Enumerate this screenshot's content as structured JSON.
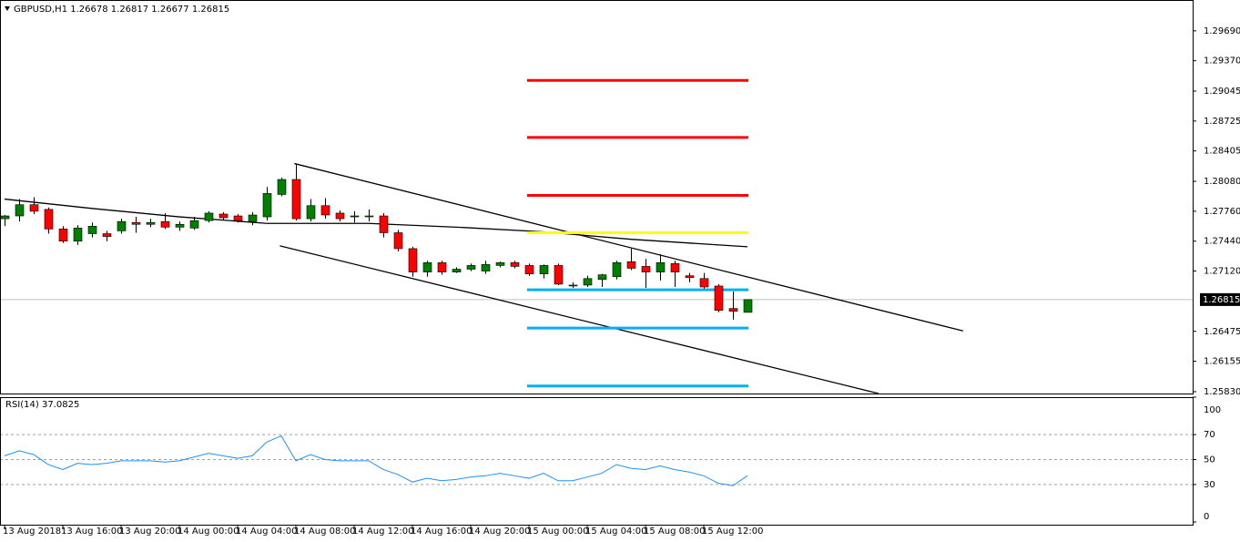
{
  "chart_data": [
    {
      "type": "candlestick",
      "title": "GBPUSD,H1  1.26678 1.26817 1.26677 1.26815",
      "categories": [
        "13 Aug 2018",
        null,
        null,
        null,
        "13 Aug 16:00",
        null,
        null,
        null,
        "13 Aug 20:00",
        null,
        null,
        null,
        "14 Aug 00:00",
        null,
        null,
        null,
        "14 Aug 04:00",
        null,
        null,
        null,
        "14 Aug 08:00",
        null,
        null,
        null,
        "14 Aug 12:00",
        null,
        null,
        null,
        "14 Aug 16:00",
        null,
        null,
        null,
        "14 Aug 20:00",
        null,
        null,
        null,
        "15 Aug 00:00",
        null,
        null,
        null,
        "15 Aug 04:00",
        null,
        null,
        null,
        "15 Aug 08:00",
        null,
        null,
        null,
        "15 Aug 12:00",
        null,
        null,
        null
      ],
      "open": [
        1.2768,
        1.2771,
        1.2783,
        1.2778,
        1.2757,
        1.2744,
        1.2752,
        1.2752,
        1.2755,
        1.2764,
        1.2762,
        1.2765,
        1.2759,
        1.2758,
        1.2766,
        1.2773,
        1.2771,
        1.2765,
        1.277,
        1.2794,
        1.281,
        1.2768,
        1.2782,
        1.2774,
        1.2771,
        1.2771,
        1.2771,
        1.2753,
        1.2736,
        1.2711,
        1.2721,
        1.2711,
        1.2714,
        1.2712,
        1.2718,
        1.2721,
        1.2718,
        1.2709,
        1.2718,
        1.2697,
        1.2697,
        1.2703,
        1.2706,
        1.2722,
        1.2717,
        1.2711,
        1.272,
        1.2707,
        1.2704,
        1.2696,
        1.2672,
        1.26678
      ],
      "high": [
        1.2772,
        1.2789,
        1.2791,
        1.278,
        1.276,
        1.2761,
        1.2764,
        1.2755,
        1.2768,
        1.277,
        1.2768,
        1.2774,
        1.2765,
        1.277,
        1.2776,
        1.2775,
        1.2773,
        1.2775,
        1.2802,
        1.2812,
        1.2827,
        1.2789,
        1.279,
        1.2777,
        1.2776,
        1.2778,
        1.2774,
        1.2756,
        1.2738,
        1.2723,
        1.2723,
        1.2716,
        1.272,
        1.2723,
        1.2722,
        1.2723,
        1.272,
        1.2719,
        1.272,
        1.27,
        1.2707,
        1.2709,
        1.2723,
        1.2736,
        1.2725,
        1.273,
        1.2723,
        1.271,
        1.271,
        1.2698,
        1.269,
        1.26817
      ],
      "low": [
        1.276,
        1.2765,
        1.2773,
        1.2752,
        1.2742,
        1.274,
        1.2748,
        1.2744,
        1.2752,
        1.2753,
        1.2759,
        1.2757,
        1.2755,
        1.2756,
        1.2764,
        1.2767,
        1.2764,
        1.2761,
        1.2766,
        1.2792,
        1.2766,
        1.2765,
        1.2768,
        1.2765,
        1.2764,
        1.2765,
        1.2748,
        1.2733,
        1.2706,
        1.2706,
        1.2708,
        1.271,
        1.2712,
        1.2709,
        1.2716,
        1.2715,
        1.2707,
        1.2704,
        1.2697,
        1.2694,
        1.2695,
        1.2695,
        1.2703,
        1.2713,
        1.2694,
        1.2702,
        1.2695,
        1.27,
        1.2693,
        1.2668,
        1.266,
        1.26677
      ],
      "close": [
        1.2771,
        1.2783,
        1.2776,
        1.2757,
        1.2744,
        1.2758,
        1.276,
        1.2749,
        1.2765,
        1.2762,
        1.2764,
        1.2759,
        1.2762,
        1.2766,
        1.2774,
        1.2769,
        1.2766,
        1.2772,
        1.2795,
        1.281,
        1.2768,
        1.2782,
        1.2772,
        1.2768,
        1.2771,
        1.2771,
        1.2753,
        1.2736,
        1.2711,
        1.2721,
        1.2711,
        1.2714,
        1.2718,
        1.2719,
        1.2721,
        1.2717,
        1.2709,
        1.2718,
        1.2698,
        1.2697,
        1.2704,
        1.2708,
        1.2721,
        1.2715,
        1.2711,
        1.2721,
        1.2711,
        1.2705,
        1.2695,
        1.267,
        1.2669,
        1.26815
      ],
      "up_color": "#008000",
      "down_color": "#ff0000",
      "last_price": 1.26815,
      "ylim": [
        1.2581,
        1.3001
      ],
      "yticks": [
        {
          "value": 1.2969,
          "label": "1.29690"
        },
        {
          "value": 1.2937,
          "label": "1.29370"
        },
        1.29045,
        1.28725,
        1.28405,
        {
          "value": 1.2808,
          "label": "1.28080"
        },
        {
          "value": 1.2776,
          "label": "1.27760"
        },
        {
          "value": 1.2744,
          "label": "1.27440"
        },
        {
          "value": 1.2712,
          "label": "1.27120"
        },
        1.26475,
        1.26155,
        {
          "value": 1.2583,
          "label": "1.25830"
        }
      ],
      "moving_average": {
        "color": "#000000",
        "x": [
          0,
          6,
          12,
          18,
          25,
          31,
          37,
          43,
          51
        ],
        "values": [
          1.2789,
          1.2779,
          1.277,
          1.2763,
          1.2763,
          1.2759,
          1.2754,
          1.2746,
          1.2738
        ]
      },
      "trend_lines": [
        {
          "color": "#000000",
          "x": [
            19.9,
            65.8
          ],
          "values": [
            1.2827,
            1.2648
          ]
        },
        {
          "color": "#000000",
          "x": [
            18.9,
            60.0
          ],
          "values": [
            1.2739,
            1.2581
          ]
        }
      ],
      "levels_x": [
        36,
        51
      ],
      "levels": [
        {
          "color": "#ff0000",
          "value": 1.2916
        },
        {
          "color": "#ff0000",
          "value": 1.2855
        },
        {
          "color": "#ff0000",
          "value": 1.2793
        },
        {
          "color": "#ffff00",
          "value": 1.2753
        },
        {
          "color": "#00b0f0",
          "value": 1.2692
        },
        {
          "color": "#00b0f0",
          "value": 1.2651
        },
        {
          "color": "#00b0f0",
          "value": 1.2589
        }
      ]
    },
    {
      "type": "line",
      "title": "RSI(14) 37.0825",
      "color": "#1e90ff",
      "values": [
        53,
        57,
        54,
        46,
        42,
        47,
        46,
        47,
        49,
        49,
        49,
        48,
        49,
        52,
        55,
        53,
        51,
        53,
        64,
        69,
        49,
        54,
        50,
        49,
        49,
        49,
        42,
        38,
        32,
        35,
        33,
        34,
        36,
        37,
        39,
        37,
        35,
        39,
        33,
        33,
        36,
        39,
        46,
        43,
        42,
        45,
        42,
        40,
        37,
        31,
        29,
        37.0825
      ],
      "ylim": [
        0,
        100
      ],
      "yticks": [
        0,
        30,
        50,
        70,
        100
      ]
    }
  ]
}
